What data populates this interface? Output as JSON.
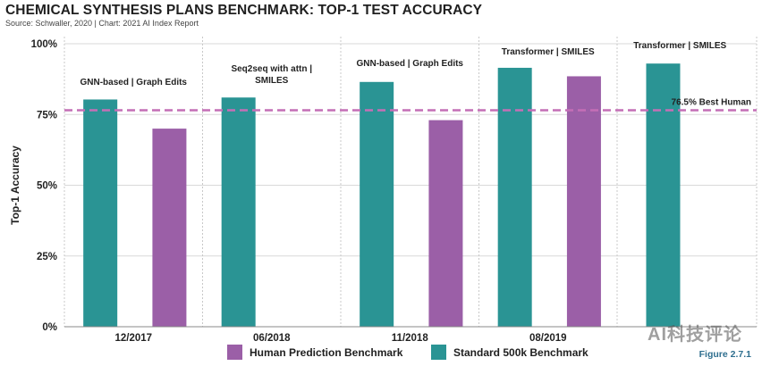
{
  "header": {
    "title": "CHEMICAL SYNTHESIS PLANS BENCHMARK: TOP-1 TEST ACCURACY",
    "source": "Source: Schwaller, 2020  | Chart: 2021 AI Index Report"
  },
  "figure_label": "Figure 2.7.1",
  "watermark": "AI科技评论",
  "colors": {
    "human": "#9b5fa7",
    "standard": "#2a9494",
    "reference": "#c46fb6"
  },
  "chart_data": {
    "type": "bar",
    "title": "CHEMICAL SYNTHESIS PLANS BENCHMARK: TOP-1 TEST ACCURACY",
    "ylabel": "Top-1 Accuracy",
    "xlabel": "",
    "ylim": [
      0,
      100
    ],
    "yticks": [
      "0%",
      "25%",
      "50%",
      "75%",
      "100%"
    ],
    "ytick_values": [
      0,
      25,
      50,
      75,
      100
    ],
    "grid": true,
    "legend_position": "bottom",
    "categories": [
      "12/2017",
      "06/2018",
      "11/2018",
      "08/2019",
      ""
    ],
    "series": [
      {
        "name": "Standard 500k Benchmark",
        "color": "#2a9494",
        "values": [
          80.3,
          81.0,
          86.5,
          91.5,
          93.0
        ]
      },
      {
        "name": "Human Prediction Benchmark",
        "color": "#9b5fa7",
        "values": [
          70.0,
          null,
          73.0,
          88.5,
          null
        ]
      }
    ],
    "group_labels": [
      [
        "GNN-based | Graph Edits"
      ],
      [
        "Seq2seq with attn |",
        "SMILES"
      ],
      [
        "GNN-based | Graph Edits"
      ],
      [
        "Transformer | SMILES"
      ],
      [
        "Transformer | SMILES"
      ]
    ],
    "reference_line": {
      "value": 76.5,
      "label": "76.5% Best Human"
    }
  }
}
